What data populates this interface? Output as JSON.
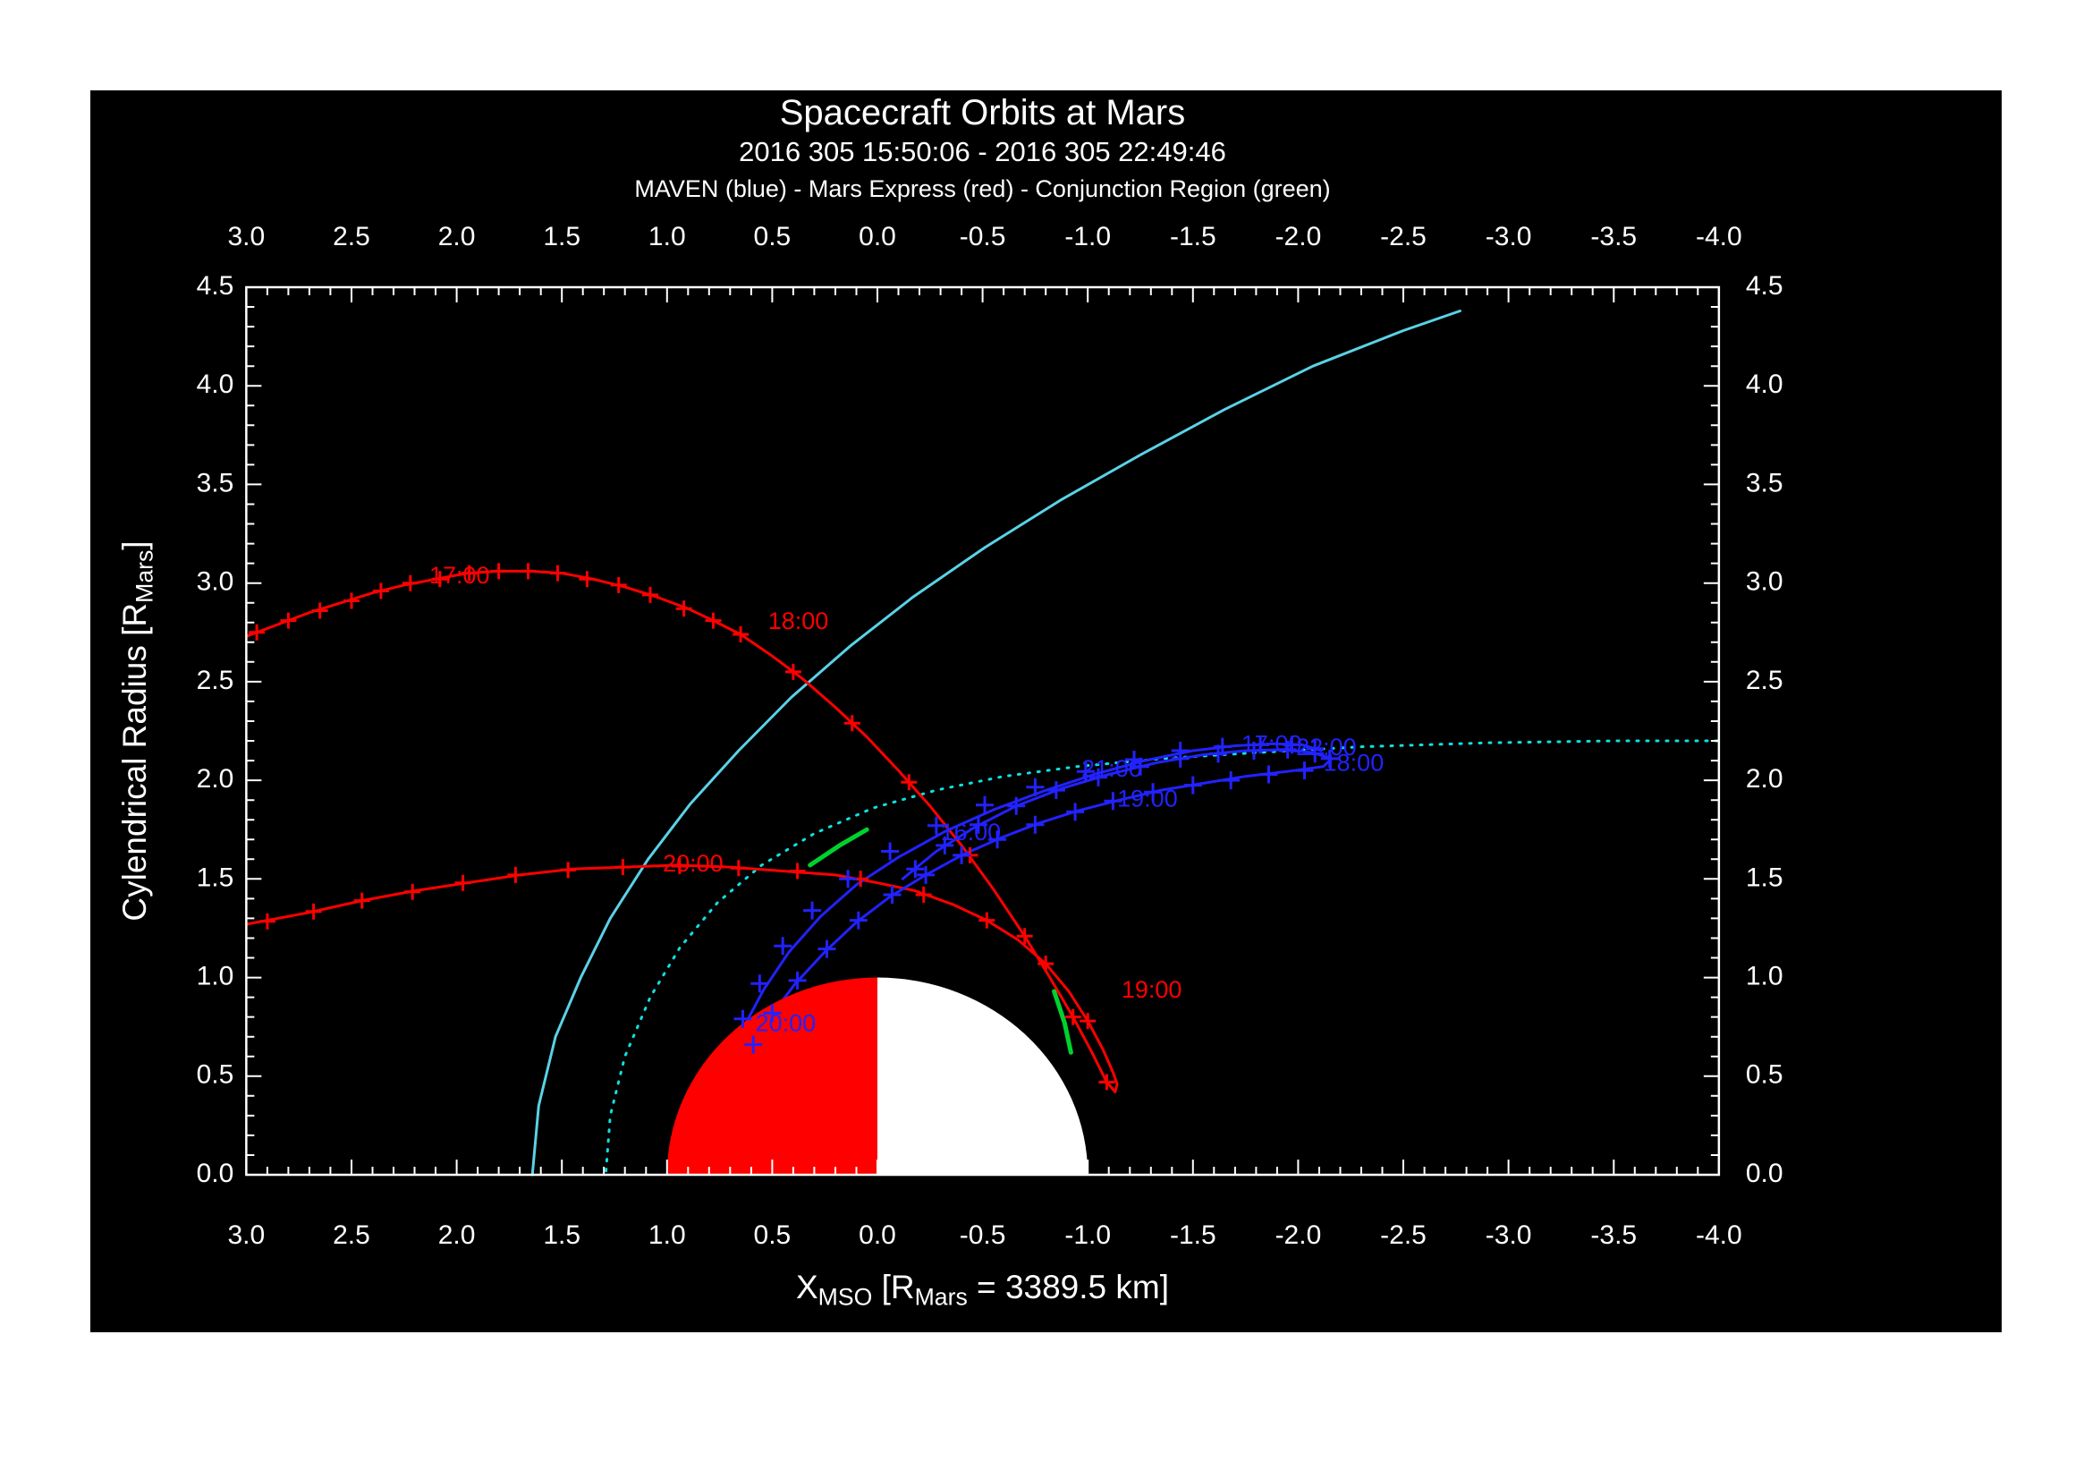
{
  "page": {
    "background": "#ffffff",
    "figure_background": "#000000",
    "text_color": "#ffffff"
  },
  "chart_data": {
    "type": "line",
    "title": "Spacecraft Orbits at Mars",
    "subtitle": "2016 305 15:50:06 - 2016 305 22:49:46",
    "legend_line": "MAVEN (blue) - Mars Express (red) - Conjunction Region (green)",
    "xlabel": "X_MSO [R_Mars = 3389.5 km]",
    "ylabel": "Cylendrical Radius [R_Mars]",
    "xlabel_parts": {
      "p1": "X",
      "s1": "MSO",
      "p2": " [R",
      "s2": "Mars",
      "p3": " = 3389.5 km]"
    },
    "ylabel_parts": {
      "p1": "Cylendrical Radius [R",
      "s1": "Mars",
      "p2": "]"
    },
    "xlim": [
      3.0,
      -4.0
    ],
    "ylim": [
      0.0,
      4.5
    ],
    "xticks": [
      3.0,
      2.5,
      2.0,
      1.5,
      1.0,
      0.5,
      0.0,
      -0.5,
      -1.0,
      -1.5,
      -2.0,
      -2.5,
      -3.0,
      -3.5,
      -4.0
    ],
    "yticks": [
      0.0,
      0.5,
      1.0,
      1.5,
      2.0,
      2.5,
      3.0,
      3.5,
      4.0,
      4.5
    ],
    "minor_tick_step": 0.1,
    "grid": false,
    "legend_position": "top-center-text-line",
    "colors": {
      "frame": "#ffffff",
      "mars_express": "#ff0000",
      "maven": "#2222ff",
      "bow_shock": "#5ad2e6",
      "mpb": "#0fe0e0",
      "conjunction": "#00d22d",
      "mars_dayside": "#ff0000",
      "mars_nightside": "#ffffff"
    },
    "mars": {
      "center_x": 0.0,
      "center_y": 0.0,
      "radius": 1.0
    },
    "series": [
      {
        "name": "bow-shock-curve",
        "color": "#5ad2e6",
        "style": "solid",
        "width": 3,
        "points": [
          [
            1.64,
            0.0
          ],
          [
            1.61,
            0.35
          ],
          [
            1.53,
            0.7
          ],
          [
            1.41,
            1.0
          ],
          [
            1.27,
            1.3
          ],
          [
            1.09,
            1.6
          ],
          [
            0.89,
            1.88
          ],
          [
            0.66,
            2.15
          ],
          [
            0.41,
            2.42
          ],
          [
            0.13,
            2.68
          ],
          [
            -0.17,
            2.93
          ],
          [
            -0.51,
            3.18
          ],
          [
            -0.87,
            3.42
          ],
          [
            -1.25,
            3.65
          ],
          [
            -1.65,
            3.88
          ],
          [
            -2.07,
            4.1
          ],
          [
            -2.5,
            4.28
          ],
          [
            -2.77,
            4.38
          ]
        ]
      },
      {
        "name": "mpb-curve",
        "color": "#0fe0e0",
        "style": "dotted",
        "width": 3,
        "points": [
          [
            1.29,
            0.02
          ],
          [
            1.27,
            0.3
          ],
          [
            1.2,
            0.6
          ],
          [
            1.08,
            0.9
          ],
          [
            0.94,
            1.15
          ],
          [
            0.76,
            1.38
          ],
          [
            0.55,
            1.57
          ],
          [
            0.3,
            1.73
          ],
          [
            0.02,
            1.86
          ],
          [
            -0.28,
            1.95
          ],
          [
            -0.6,
            2.02
          ],
          [
            -0.95,
            2.07
          ],
          [
            -1.35,
            2.11
          ],
          [
            -1.8,
            2.14
          ],
          [
            -2.3,
            2.17
          ],
          [
            -2.9,
            2.19
          ],
          [
            -3.5,
            2.2
          ],
          [
            -4.0,
            2.2
          ]
        ]
      },
      {
        "name": "mars-express-trajectory",
        "color": "#ff0000",
        "style": "solid",
        "width": 3,
        "points": [
          [
            3.0,
            2.73
          ],
          [
            2.85,
            2.79
          ],
          [
            2.7,
            2.85
          ],
          [
            2.55,
            2.9
          ],
          [
            2.4,
            2.95
          ],
          [
            2.25,
            2.99
          ],
          [
            2.1,
            3.02
          ],
          [
            1.95,
            3.05
          ],
          [
            1.8,
            3.06
          ],
          [
            1.65,
            3.06
          ],
          [
            1.5,
            3.05
          ],
          [
            1.35,
            3.02
          ],
          [
            1.2,
            2.98
          ],
          [
            1.05,
            2.93
          ],
          [
            0.9,
            2.87
          ],
          [
            0.78,
            2.81
          ],
          [
            0.65,
            2.74
          ],
          [
            0.5,
            2.63
          ],
          [
            0.35,
            2.51
          ],
          [
            0.2,
            2.37
          ],
          [
            0.05,
            2.22
          ],
          [
            -0.1,
            2.05
          ],
          [
            -0.25,
            1.87
          ],
          [
            -0.4,
            1.67
          ],
          [
            -0.55,
            1.45
          ],
          [
            -0.7,
            1.21
          ],
          [
            -0.82,
            1.0
          ],
          [
            -0.93,
            0.8
          ],
          [
            -1.02,
            0.62
          ],
          [
            -1.09,
            0.47
          ],
          [
            -1.13,
            0.42
          ],
          [
            -1.14,
            0.46
          ],
          [
            -1.12,
            0.52
          ],
          [
            -1.07,
            0.64
          ],
          [
            -1.0,
            0.78
          ],
          [
            -0.91,
            0.93
          ],
          [
            -0.8,
            1.07
          ],
          [
            -0.67,
            1.19
          ],
          [
            -0.52,
            1.29
          ],
          [
            -0.36,
            1.37
          ],
          [
            -0.18,
            1.44
          ],
          [
            0.0,
            1.48
          ],
          [
            0.2,
            1.52
          ],
          [
            0.45,
            1.54
          ],
          [
            0.7,
            1.56
          ],
          [
            0.95,
            1.57
          ],
          [
            1.2,
            1.56
          ],
          [
            1.45,
            1.55
          ],
          [
            1.7,
            1.52
          ],
          [
            1.95,
            1.48
          ],
          [
            2.2,
            1.44
          ],
          [
            2.45,
            1.39
          ],
          [
            2.7,
            1.33
          ],
          [
            3.0,
            1.27
          ]
        ]
      },
      {
        "name": "maven-trajectory",
        "color": "#2222ff",
        "style": "solid",
        "width": 3,
        "points": [
          [
            -0.12,
            1.5
          ],
          [
            -0.28,
            1.64
          ],
          [
            -0.46,
            1.76
          ],
          [
            -0.66,
            1.87
          ],
          [
            -0.88,
            1.96
          ],
          [
            -1.1,
            2.03
          ],
          [
            -1.33,
            2.09
          ],
          [
            -1.55,
            2.13
          ],
          [
            -1.75,
            2.15
          ],
          [
            -1.93,
            2.155
          ],
          [
            -2.07,
            2.14
          ],
          [
            -2.16,
            2.11
          ],
          [
            -2.12,
            2.07
          ],
          [
            -1.95,
            2.045
          ],
          [
            -1.75,
            2.02
          ],
          [
            -1.55,
            1.985
          ],
          [
            -1.35,
            1.95
          ],
          [
            -1.15,
            1.9
          ],
          [
            -0.95,
            1.845
          ],
          [
            -0.76,
            1.78
          ],
          [
            -0.58,
            1.705
          ],
          [
            -0.4,
            1.62
          ],
          [
            -0.23,
            1.52
          ],
          [
            -0.06,
            1.41
          ],
          [
            0.1,
            1.28
          ],
          [
            0.25,
            1.13
          ],
          [
            0.39,
            0.97
          ],
          [
            0.51,
            0.8
          ],
          [
            0.6,
            0.64
          ],
          [
            0.65,
            0.52
          ],
          [
            0.67,
            0.6
          ],
          [
            0.63,
            0.76
          ],
          [
            0.54,
            0.94
          ],
          [
            0.42,
            1.13
          ],
          [
            0.27,
            1.31
          ],
          [
            0.1,
            1.47
          ],
          [
            -0.1,
            1.61
          ],
          [
            -0.32,
            1.74
          ],
          [
            -0.55,
            1.85
          ],
          [
            -0.79,
            1.945
          ],
          [
            -1.03,
            2.03
          ],
          [
            -1.27,
            2.1
          ],
          [
            -1.5,
            2.15
          ],
          [
            -1.7,
            2.175
          ],
          [
            -1.88,
            2.185
          ],
          [
            -2.02,
            2.18
          ],
          [
            -2.11,
            2.15
          ]
        ]
      },
      {
        "name": "conjunction-segment-a",
        "color": "#00d22d",
        "style": "solid",
        "width": 5,
        "points": [
          [
            0.32,
            1.57
          ],
          [
            0.18,
            1.67
          ],
          [
            0.05,
            1.75
          ]
        ]
      },
      {
        "name": "conjunction-segment-b",
        "color": "#00d22d",
        "style": "solid",
        "width": 5,
        "points": [
          [
            -0.84,
            0.93
          ],
          [
            -0.89,
            0.77
          ],
          [
            -0.92,
            0.62
          ]
        ]
      }
    ],
    "marker_groups": [
      {
        "name": "mars-express-markers",
        "color": "#ff0000",
        "size": 9,
        "points": [
          [
            2.95,
            2.75
          ],
          [
            2.8,
            2.81
          ],
          [
            2.65,
            2.86
          ],
          [
            2.5,
            2.91
          ],
          [
            2.36,
            2.96
          ],
          [
            2.22,
            3.0
          ],
          [
            2.08,
            3.02
          ],
          [
            1.94,
            3.05
          ],
          [
            1.8,
            3.06
          ],
          [
            1.66,
            3.06
          ],
          [
            1.52,
            3.05
          ],
          [
            1.38,
            3.02
          ],
          [
            1.23,
            2.99
          ],
          [
            1.08,
            2.94
          ],
          [
            0.92,
            2.87
          ],
          [
            0.78,
            2.81
          ],
          [
            0.65,
            2.74
          ],
          [
            0.4,
            2.55
          ],
          [
            0.12,
            2.29
          ],
          [
            -0.15,
            1.99
          ],
          [
            -0.44,
            1.62
          ],
          [
            -0.7,
            1.21
          ],
          [
            -0.93,
            0.8
          ],
          [
            -1.09,
            0.47
          ],
          [
            -1.0,
            0.78
          ],
          [
            -0.8,
            1.07
          ],
          [
            -0.52,
            1.29
          ],
          [
            -0.22,
            1.42
          ],
          [
            0.08,
            1.5
          ],
          [
            0.38,
            1.54
          ],
          [
            0.66,
            1.555
          ],
          [
            0.94,
            1.565
          ],
          [
            1.21,
            1.56
          ],
          [
            1.47,
            1.545
          ],
          [
            1.72,
            1.52
          ],
          [
            1.97,
            1.48
          ],
          [
            2.21,
            1.435
          ],
          [
            2.45,
            1.39
          ],
          [
            2.68,
            1.335
          ],
          [
            2.9,
            1.285
          ]
        ]
      },
      {
        "name": "maven-markers",
        "color": "#2222ff",
        "size": 10,
        "points": [
          [
            -0.18,
            1.55
          ],
          [
            -0.32,
            1.67
          ],
          [
            -0.48,
            1.775
          ],
          [
            -0.66,
            1.87
          ],
          [
            -0.85,
            1.95
          ],
          [
            -1.05,
            2.015
          ],
          [
            -1.25,
            2.07
          ],
          [
            -1.44,
            2.11
          ],
          [
            -1.62,
            2.135
          ],
          [
            -1.79,
            2.15
          ],
          [
            -1.95,
            2.155
          ],
          [
            -2.08,
            2.135
          ],
          [
            -2.15,
            2.11
          ],
          [
            -2.03,
            2.05
          ],
          [
            -1.86,
            2.03
          ],
          [
            -1.68,
            2.0
          ],
          [
            -1.5,
            1.975
          ],
          [
            -1.31,
            1.94
          ],
          [
            -1.12,
            1.895
          ],
          [
            -0.94,
            1.84
          ],
          [
            -0.75,
            1.775
          ],
          [
            -0.57,
            1.7
          ],
          [
            -0.4,
            1.62
          ],
          [
            -0.23,
            1.52
          ],
          [
            -0.07,
            1.42
          ],
          [
            0.09,
            1.29
          ],
          [
            0.24,
            1.145
          ],
          [
            0.38,
            0.985
          ],
          [
            0.5,
            0.82
          ],
          [
            0.59,
            0.66
          ],
          [
            0.64,
            0.79
          ],
          [
            0.56,
            0.97
          ],
          [
            0.45,
            1.16
          ],
          [
            0.31,
            1.34
          ],
          [
            0.14,
            1.5
          ],
          [
            -0.06,
            1.64
          ],
          [
            -0.28,
            1.77
          ],
          [
            -0.51,
            1.875
          ],
          [
            -0.75,
            1.965
          ],
          [
            -0.99,
            2.045
          ],
          [
            -1.22,
            2.105
          ],
          [
            -1.44,
            2.15
          ],
          [
            -1.64,
            2.17
          ],
          [
            -1.82,
            2.18
          ],
          [
            -1.97,
            2.18
          ],
          [
            -2.08,
            2.16
          ]
        ]
      }
    ],
    "time_labels": [
      {
        "text": "17:00",
        "x": 2.13,
        "y": 3.03,
        "color": "#ff0000"
      },
      {
        "text": "18:00",
        "x": 0.52,
        "y": 2.8,
        "color": "#ff0000"
      },
      {
        "text": "19:00",
        "x": -1.16,
        "y": 0.93,
        "color": "#ff0000"
      },
      {
        "text": "20:00",
        "x": 1.02,
        "y": 1.57,
        "color": "#ff0000"
      },
      {
        "text": "16:00",
        "x": -0.3,
        "y": 1.73,
        "color": "#2222ff"
      },
      {
        "text": "19:00",
        "x": -1.14,
        "y": 1.9,
        "color": "#2222ff"
      },
      {
        "text": "21:00",
        "x": -0.97,
        "y": 2.05,
        "color": "#2222ff"
      },
      {
        "text": "17:00",
        "x": -1.73,
        "y": 2.175,
        "color": "#2222ff"
      },
      {
        "text": "22:00",
        "x": -1.99,
        "y": 2.16,
        "color": "#2222ff"
      },
      {
        "text": "18:00",
        "x": -2.12,
        "y": 2.08,
        "color": "#2222ff"
      },
      {
        "text": "20:00",
        "x": 0.58,
        "y": 0.76,
        "color": "#2222ff"
      }
    ]
  }
}
